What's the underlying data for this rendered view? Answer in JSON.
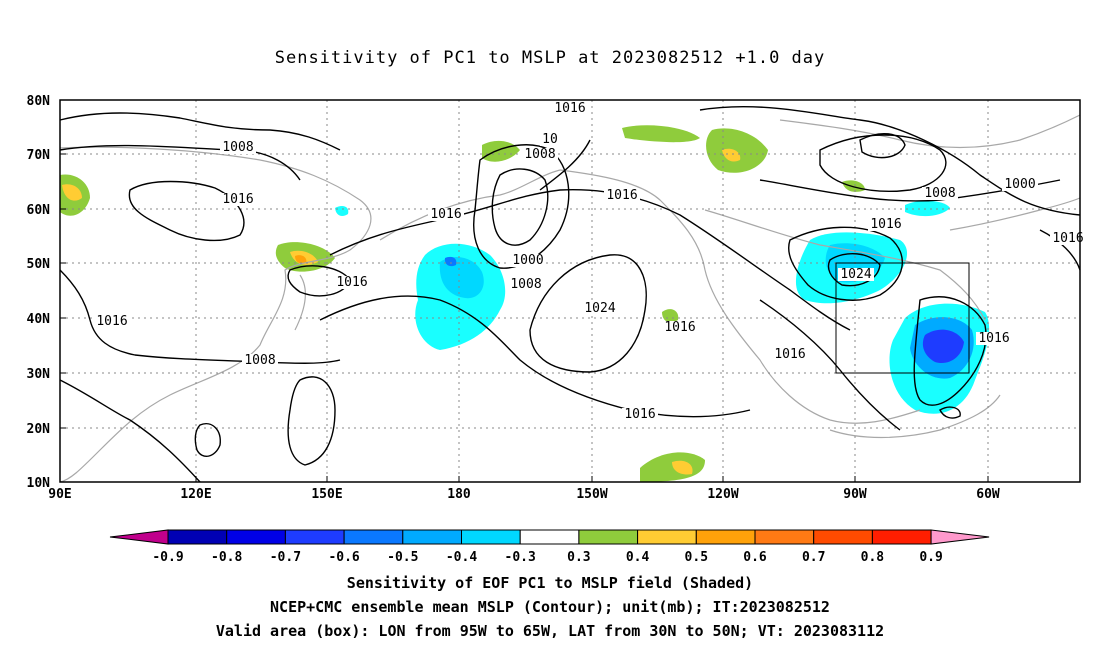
{
  "title": "Sensitivity of PC1 to MSLP at 2023082512 +1.0 day",
  "map": {
    "lat_ticks": [
      "80N",
      "70N",
      "60N",
      "50N",
      "40N",
      "30N",
      "20N",
      "10N"
    ],
    "lon_ticks": [
      "90E",
      "120E",
      "150E",
      "180",
      "150W",
      "120W",
      "90W",
      "60W"
    ],
    "valid_box": {
      "lon_from": "95W",
      "lon_to": "65W",
      "lat_from": "30N",
      "lat_to": "50N"
    },
    "grid_style": "dotted",
    "contour_labels": [
      "1008",
      "1016",
      "1016",
      "1008",
      "1016",
      "1016",
      "1008",
      "1016",
      "1000",
      "1008",
      "1016",
      "1024",
      "1016",
      "1016",
      "1016",
      "1016",
      "1008",
      "1000",
      "1024",
      "1016",
      "1016",
      "10"
    ],
    "colors": {
      "neg_extreme": "#c0008c",
      "neg_09": "#0000b4",
      "neg_08": "#0000e6",
      "neg_07": "#1e3cff",
      "neg_06": "#0a78ff",
      "neg_05": "#00aaff",
      "neg_04": "#00d8ff",
      "neg_03": "#19ffff",
      "neutral": "#ffffff",
      "pos_03": "#8fcc3c",
      "pos_04": "#ffcc33",
      "pos_05": "#ffa20a",
      "pos_06": "#ff7a14",
      "pos_07": "#ff4b00",
      "pos_08": "#ff1e00",
      "pos_extreme": "#ff99cc",
      "coast": "#a8a8a8"
    }
  },
  "colorbar": {
    "labels": [
      "-0.9",
      "-0.8",
      "-0.7",
      "-0.6",
      "-0.5",
      "-0.4",
      "-0.3",
      "0.3",
      "0.4",
      "0.5",
      "0.6",
      "0.7",
      "0.8",
      "0.9"
    ]
  },
  "captions": {
    "line1": "Sensitivity of EOF PC1 to MSLP field (Shaded)",
    "line2": "NCEP+CMC ensemble mean MSLP (Contour); unit(mb); IT:2023082512",
    "line3": "Valid area (box): LON from 95W to 65W, LAT from 30N to 50N; VT: 2023083112"
  }
}
